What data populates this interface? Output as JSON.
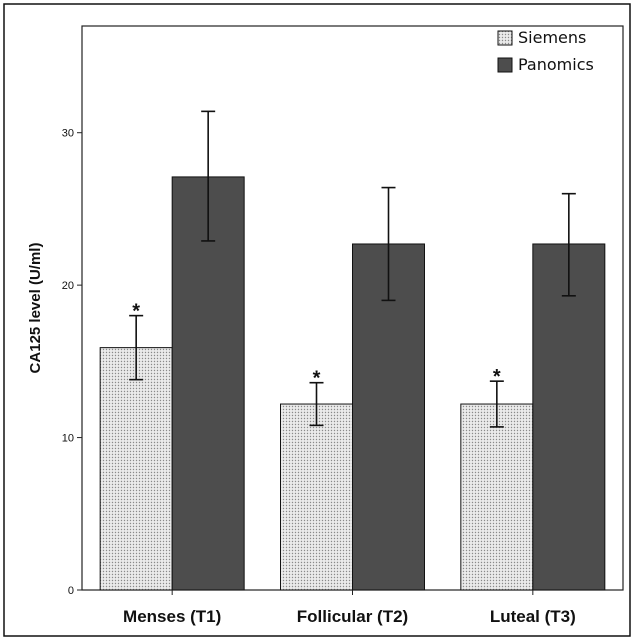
{
  "chart_data": {
    "type": "bar",
    "title": "",
    "xlabel": "",
    "ylabel": "CA125 level (U/ml)",
    "ylim": [
      0,
      37
    ],
    "yticks": [
      0,
      10,
      20,
      30
    ],
    "grid": false,
    "legend_position": "top-right",
    "categories": [
      "Menses (T1)",
      "Follicular (T2)",
      "Luteal (T3)"
    ],
    "series": [
      {
        "name": "Siemens",
        "fill": "#e6e6e6",
        "pattern": "dotted",
        "values": [
          15.9,
          12.2,
          12.2
        ],
        "error_low": [
          13.8,
          10.8,
          10.7
        ],
        "error_high": [
          18.0,
          13.6,
          13.7
        ],
        "annotations": [
          "*",
          "*",
          "*"
        ]
      },
      {
        "name": "Panomics",
        "fill": "#4d4d4d",
        "values": [
          27.1,
          22.7,
          22.7
        ],
        "error_low": [
          22.9,
          19.0,
          19.3
        ],
        "error_high": [
          31.4,
          26.4,
          26.0
        ],
        "annotations": [
          "",
          "",
          ""
        ]
      }
    ]
  }
}
